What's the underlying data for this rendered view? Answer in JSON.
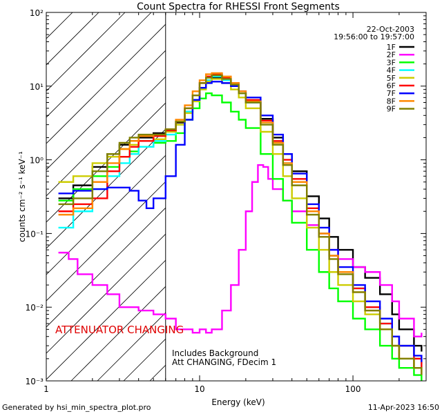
{
  "chart_data": {
    "type": "line",
    "title": "Count Spectra for RHESSI Front Segments",
    "xlabel": "Energy (keV)",
    "ylabel": "counts cm⁻² s⁻¹ keV⁻¹",
    "xscale": "log",
    "yscale": "log",
    "xlim": [
      1,
      300
    ],
    "ylim": [
      0.001,
      100
    ],
    "x_ticks": [
      {
        "v": 1,
        "label": "1"
      },
      {
        "v": 10,
        "label": "10"
      },
      {
        "v": 100,
        "label": "100"
      }
    ],
    "y_ticks": [
      {
        "v": 100,
        "label": "10²"
      },
      {
        "v": 10,
        "label": "10¹"
      },
      {
        "v": 1,
        "label": "10⁰"
      },
      {
        "v": 0.1,
        "label": "10⁻¹"
      },
      {
        "v": 0.01,
        "label": "10⁻²"
      },
      {
        "v": 0.001,
        "label": "10⁻³"
      }
    ],
    "date": "22-Oct-2003",
    "time_range": "19:56:00 to 19:57:00",
    "hatched_region": {
      "x_from": 1,
      "x_to": 6
    },
    "attenuator_label": "ATTENUATOR CHANGING",
    "annotation_lines": [
      "Includes Background",
      "Att CHANGING, FDecim 1"
    ],
    "footer_left": "Generated by hsi_min_spectra_plot.pro",
    "footer_right": "11-Apr-2023 16:50",
    "series": [
      {
        "name": "1F",
        "color": "#000000",
        "x": [
          1.2,
          1.5,
          2,
          2.5,
          3,
          3.5,
          4,
          5,
          6,
          7,
          8,
          9,
          10,
          11,
          12,
          14,
          16,
          18,
          20,
          25,
          30,
          35,
          40,
          50,
          60,
          70,
          80,
          100,
          120,
          150,
          180,
          200,
          250,
          280
        ],
        "y": [
          0.3,
          0.45,
          0.8,
          1.2,
          1.6,
          1.8,
          2.0,
          2.3,
          2.5,
          3.2,
          4.5,
          6.5,
          9.5,
          12,
          13,
          12,
          10,
          8,
          6,
          3.6,
          2.0,
          1.2,
          0.7,
          0.32,
          0.16,
          0.09,
          0.06,
          0.035,
          0.025,
          0.015,
          0.008,
          0.005,
          0.003,
          0.0025
        ]
      },
      {
        "name": "2F",
        "color": "#ff00ff",
        "x": [
          1.2,
          1.4,
          1.6,
          2,
          2.5,
          3,
          4,
          5,
          6,
          7,
          8,
          9,
          10,
          11,
          12,
          14,
          16,
          18,
          20,
          22,
          24,
          26,
          28,
          30,
          35,
          40,
          50,
          60,
          70,
          80,
          100,
          120,
          150,
          180,
          200,
          250,
          280
        ],
        "y": [
          0.055,
          0.045,
          0.028,
          0.02,
          0.015,
          0.01,
          0.009,
          0.008,
          0.007,
          0.005,
          0.005,
          0.0045,
          0.005,
          0.0045,
          0.005,
          0.009,
          0.02,
          0.06,
          0.2,
          0.5,
          0.85,
          0.8,
          0.55,
          0.4,
          0.28,
          0.2,
          0.13,
          0.09,
          0.06,
          0.045,
          0.035,
          0.03,
          0.02,
          0.012,
          0.007,
          0.004,
          0.0045
        ]
      },
      {
        "name": "3F",
        "color": "#00ff00",
        "x": [
          1.2,
          1.5,
          2,
          2.5,
          3,
          3.5,
          4,
          5,
          6,
          7,
          8,
          9,
          10,
          11,
          12,
          14,
          16,
          18,
          20,
          25,
          30,
          35,
          40,
          50,
          60,
          70,
          80,
          100,
          120,
          150,
          180,
          200,
          250,
          280
        ],
        "y": [
          0.28,
          0.4,
          0.6,
          0.8,
          1.1,
          1.3,
          1.5,
          1.7,
          1.8,
          2.3,
          3.5,
          5,
          6.8,
          8,
          7.5,
          6,
          4.5,
          3.5,
          2.7,
          1.2,
          0.55,
          0.28,
          0.14,
          0.06,
          0.03,
          0.018,
          0.012,
          0.007,
          0.005,
          0.003,
          0.002,
          0.0015,
          0.0012,
          0.001
        ]
      },
      {
        "name": "4F",
        "color": "#00ffff",
        "x": [
          1.2,
          1.5,
          2,
          2.5,
          3,
          3.5,
          4,
          5,
          6,
          7,
          8,
          9,
          10,
          11,
          12,
          14,
          16,
          18,
          20,
          25,
          30,
          35,
          40,
          50,
          60,
          70,
          80,
          100,
          120,
          150,
          180,
          200,
          250,
          280
        ],
        "y": [
          0.12,
          0.2,
          0.4,
          0.6,
          0.9,
          1.2,
          1.5,
          1.8,
          2.2,
          3,
          4.5,
          6.5,
          9.5,
          12,
          13.5,
          12,
          10,
          8,
          6,
          3.2,
          1.7,
          0.9,
          0.5,
          0.2,
          0.1,
          0.05,
          0.03,
          0.018,
          0.01,
          0.006,
          0.004,
          0.003,
          0.002,
          0.0015
        ]
      },
      {
        "name": "5F",
        "color": "#cccc00",
        "x": [
          1.2,
          1.5,
          2,
          2.5,
          3,
          3.5,
          4,
          5,
          6,
          7,
          8,
          9,
          10,
          11,
          12,
          14,
          16,
          18,
          20,
          25,
          30,
          35,
          40,
          50,
          60,
          70,
          80,
          100,
          120,
          150,
          180,
          200,
          250,
          280
        ],
        "y": [
          0.5,
          0.6,
          0.9,
          1.1,
          1.4,
          1.6,
          1.8,
          1.9,
          2.4,
          3,
          4.3,
          6.2,
          9,
          11.5,
          12.5,
          11,
          9,
          7,
          5,
          2.4,
          1.2,
          0.6,
          0.3,
          0.12,
          0.06,
          0.03,
          0.02,
          0.012,
          0.008,
          0.005,
          0.003,
          0.002,
          0.0015,
          0.0012
        ]
      },
      {
        "name": "6F",
        "color": "#ff0000",
        "x": [
          1.2,
          1.5,
          2,
          2.5,
          3,
          3.5,
          4,
          5,
          6,
          7,
          8,
          9,
          10,
          11,
          12,
          14,
          16,
          18,
          20,
          25,
          30,
          35,
          40,
          50,
          60,
          70,
          80,
          100,
          120,
          150,
          180,
          200,
          250,
          280
        ],
        "y": [
          0.2,
          0.25,
          0.3,
          0.7,
          1.1,
          1.5,
          1.8,
          2.1,
          2.5,
          3.3,
          5,
          7.5,
          11,
          13.5,
          14.5,
          13,
          11,
          8.5,
          6.5,
          3.4,
          1.8,
          1,
          0.55,
          0.22,
          0.1,
          0.05,
          0.03,
          0.018,
          0.01,
          0.006,
          0.004,
          0.003,
          0.002,
          0.0015
        ]
      },
      {
        "name": "7F",
        "color": "#0000ff",
        "x": [
          1.2,
          1.5,
          2,
          2.5,
          3,
          3.5,
          4,
          4.5,
          5,
          6,
          7,
          8,
          9,
          10,
          11,
          12,
          14,
          16,
          18,
          20,
          25,
          30,
          35,
          40,
          50,
          60,
          70,
          80,
          100,
          120,
          150,
          180,
          200,
          250,
          280
        ],
        "y": [
          0.35,
          0.38,
          0.4,
          0.42,
          0.42,
          0.38,
          0.28,
          0.22,
          0.3,
          0.6,
          1.6,
          3.5,
          6.5,
          9.5,
          11,
          11.5,
          11,
          10,
          8.5,
          7,
          4,
          2.2,
          1.2,
          0.65,
          0.25,
          0.12,
          0.06,
          0.035,
          0.02,
          0.012,
          0.007,
          0.004,
          0.003,
          0.0022,
          0.0018
        ]
      },
      {
        "name": "8F",
        "color": "#ff8800",
        "x": [
          1.2,
          1.5,
          2,
          2.5,
          3,
          3.5,
          4,
          5,
          6,
          7,
          8,
          9,
          10,
          11,
          12,
          14,
          16,
          18,
          20,
          25,
          30,
          35,
          40,
          50,
          60,
          70,
          80,
          100,
          120,
          150,
          180,
          200,
          250,
          280
        ],
        "y": [
          0.18,
          0.22,
          0.5,
          0.9,
          1.4,
          1.8,
          2.1,
          2.2,
          2.6,
          3.5,
          5.5,
          8.5,
          12,
          14.5,
          15,
          13.5,
          11,
          8.5,
          6.2,
          3.2,
          1.7,
          0.9,
          0.5,
          0.2,
          0.1,
          0.05,
          0.03,
          0.016,
          0.009,
          0.005,
          0.003,
          0.002,
          0.0015,
          0.0012
        ]
      },
      {
        "name": "9F",
        "color": "#808000",
        "x": [
          1.2,
          1.5,
          2,
          2.5,
          3,
          3.5,
          4,
          5,
          6,
          7,
          8,
          9,
          10,
          11,
          12,
          14,
          16,
          18,
          20,
          25,
          30,
          35,
          40,
          50,
          60,
          70,
          80,
          100,
          120,
          150,
          180,
          200,
          250,
          280
        ],
        "y": [
          0.25,
          0.3,
          0.7,
          1.2,
          1.7,
          2.0,
          2.2,
          2.2,
          2.6,
          3.3,
          5,
          7.5,
          11,
          13,
          14,
          12.5,
          10.5,
          8,
          6,
          3,
          1.6,
          0.85,
          0.45,
          0.18,
          0.09,
          0.045,
          0.028,
          0.016,
          0.009,
          0.005,
          0.003,
          0.002,
          0.0015,
          0.0012
        ]
      }
    ]
  }
}
